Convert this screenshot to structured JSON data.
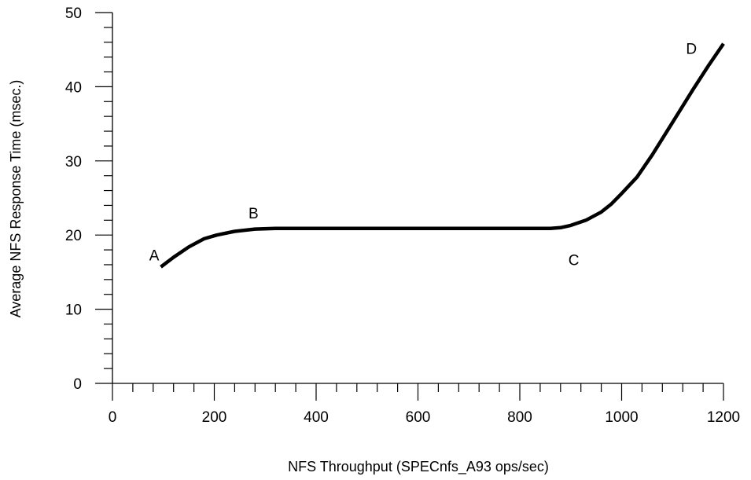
{
  "chart_data": {
    "type": "line",
    "title": "",
    "xlabel": "NFS Throughput (SPECnfs_A93 ops/sec)",
    "ylabel": "Average NFS Response Time (msec.)",
    "xlim": [
      0,
      1200
    ],
    "ylim": [
      0,
      50
    ],
    "x_ticks": [
      0,
      200,
      400,
      600,
      800,
      1000,
      1200
    ],
    "y_ticks": [
      0,
      10,
      20,
      30,
      40,
      50
    ],
    "x_minor_step": 40,
    "y_minor_step": 2,
    "grid": false,
    "line_color": "#000000",
    "series": [
      {
        "x": [
          95,
          120,
          150,
          180,
          205,
          240,
          280,
          320,
          350,
          500,
          700,
          860,
          880,
          900,
          930,
          960,
          980,
          1000,
          1030,
          1060,
          1100,
          1140,
          1170,
          1200
        ],
        "y": [
          15.7,
          17.0,
          18.4,
          19.5,
          20.0,
          20.5,
          20.8,
          20.9,
          20.9,
          20.9,
          20.9,
          20.9,
          21.0,
          21.3,
          22.0,
          23.1,
          24.2,
          25.6,
          27.8,
          30.8,
          35.2,
          39.6,
          42.8,
          45.8
        ]
      }
    ],
    "annotations": [
      {
        "text": "A",
        "x": 82,
        "y": 17.3
      },
      {
        "text": "B",
        "x": 277,
        "y": 23.0
      },
      {
        "text": "C",
        "x": 906,
        "y": 16.7
      },
      {
        "text": "D",
        "x": 1137,
        "y": 45.2
      }
    ]
  }
}
